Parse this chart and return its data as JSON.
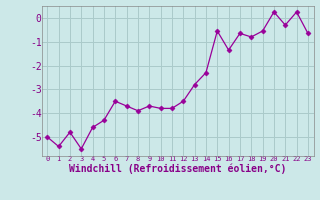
{
  "x": [
    0,
    1,
    2,
    3,
    4,
    5,
    6,
    7,
    8,
    9,
    10,
    11,
    12,
    13,
    14,
    15,
    16,
    17,
    18,
    19,
    20,
    21,
    22,
    23
  ],
  "y": [
    -5.0,
    -5.4,
    -4.8,
    -5.5,
    -4.6,
    -4.3,
    -3.5,
    -3.7,
    -3.9,
    -3.7,
    -3.8,
    -3.8,
    -3.5,
    -2.8,
    -2.3,
    -0.55,
    -1.35,
    -0.65,
    -0.8,
    -0.55,
    0.25,
    -0.3,
    0.25,
    -0.65
  ],
  "line_color": "#990099",
  "marker": "D",
  "marker_size": 2.5,
  "bg_color": "#cce8e8",
  "grid_color": "#aacaca",
  "xlabel": "Windchill (Refroidissement éolien,°C)",
  "xlabel_color": "#880088",
  "tick_color": "#880088",
  "ylim": [
    -5.8,
    0.5
  ],
  "xlim": [
    -0.5,
    23.5
  ],
  "yticks": [
    0,
    -1,
    -2,
    -3,
    -4,
    -5
  ],
  "xticks": [
    0,
    1,
    2,
    3,
    4,
    5,
    6,
    7,
    8,
    9,
    10,
    11,
    12,
    13,
    14,
    15,
    16,
    17,
    18,
    19,
    20,
    21,
    22,
    23
  ],
  "spine_color": "#888888",
  "ylabel_fontsize": 7,
  "xlabel_fontsize": 7,
  "xtick_fontsize": 5,
  "ytick_fontsize": 7
}
